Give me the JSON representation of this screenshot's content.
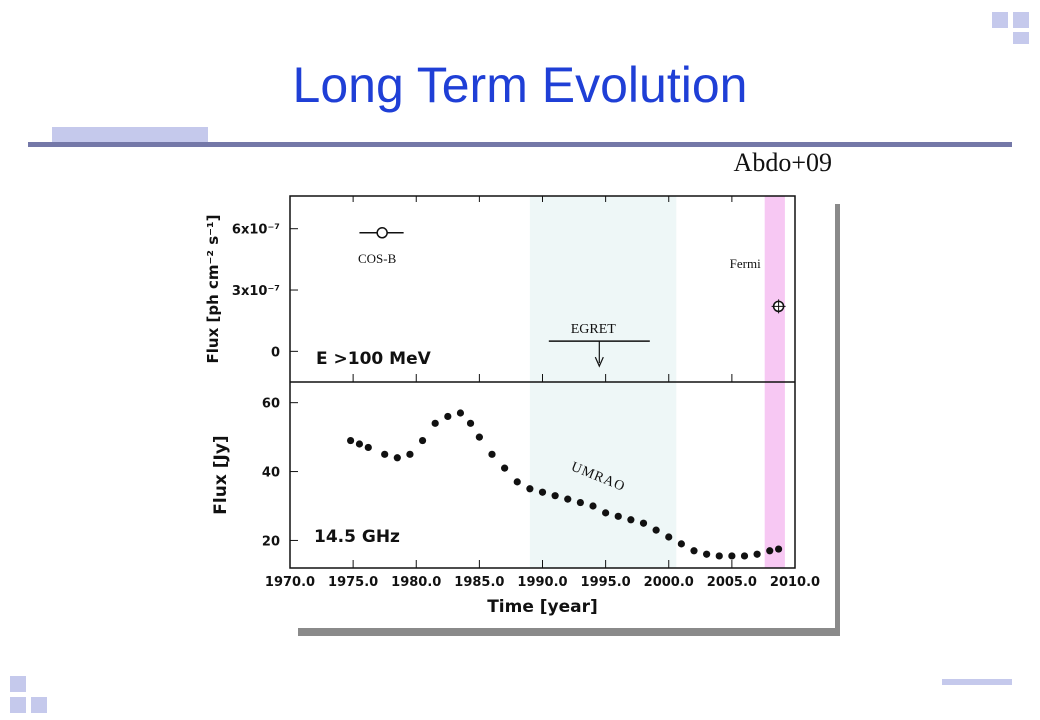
{
  "slide": {
    "title": "Long Term Evolution",
    "citation": "Abdo+09"
  },
  "colors": {
    "title": "#1f3fd6",
    "egret_band": "#eef7f7",
    "fermi_band": "#f7c8f3",
    "deco": "#c5c9ec"
  },
  "chart_data": [
    {
      "type": "scatter",
      "panel": "top",
      "ylabel": "Flux [ph cm⁻² s⁻¹]",
      "annotation": "E >100 MeV",
      "ylim": [
        -1.5e-07,
        7.6e-07
      ],
      "y_ticks": [
        {
          "value": 0,
          "label": "0"
        },
        {
          "value": 3e-07,
          "label": "3x10⁻⁷"
        },
        {
          "value": 6e-07,
          "label": "6x10⁻⁷"
        }
      ],
      "series": [
        {
          "name": "COS-B",
          "points": [
            {
              "x": 1977.3,
              "x_range": [
                1975.5,
                1979.0
              ],
              "y": 5.8e-07
            }
          ]
        },
        {
          "name": "EGRET",
          "upper_limit": {
            "x_range": [
              1990.5,
              1998.5
            ],
            "y": 5e-08
          }
        },
        {
          "name": "Fermi",
          "points": [
            {
              "x": 2008.7,
              "y": 2.2e-07
            }
          ]
        }
      ]
    },
    {
      "type": "scatter",
      "panel": "bottom",
      "ylabel": "Flux [Jy]",
      "xlabel": "Time [year]",
      "annotation": "14.5 GHz",
      "series_label": "UMRAO",
      "xlim": [
        1970,
        2010
      ],
      "ylim": [
        12,
        66
      ],
      "x_ticks": [
        "1970.0",
        "1975.0",
        "1980.0",
        "1985.0",
        "1990.0",
        "1995.0",
        "2000.0",
        "2005.0",
        "2010.0"
      ],
      "y_ticks": [
        20,
        40,
        60
      ],
      "egret_era": [
        1989.0,
        2000.6
      ],
      "fermi_era": [
        2007.6,
        2009.2
      ],
      "series": [
        {
          "name": "UMRAO",
          "x": [
            1974.8,
            1975.5,
            1976.2,
            1977.5,
            1978.5,
            1979.5,
            1980.5,
            1981.5,
            1982.5,
            1983.5,
            1984.3,
            1985.0,
            1986.0,
            1987.0,
            1988.0,
            1989.0,
            1990.0,
            1991.0,
            1992.0,
            1993.0,
            1994.0,
            1995.0,
            1996.0,
            1997.0,
            1998.0,
            1999.0,
            2000.0,
            2001.0,
            2002.0,
            2003.0,
            2004.0,
            2005.0,
            2006.0,
            2007.0,
            2008.0,
            2008.7
          ],
          "y": [
            49,
            48,
            47,
            45,
            44,
            45,
            49,
            54,
            56,
            57,
            54,
            50,
            45,
            41,
            37,
            35,
            34,
            33,
            32,
            31,
            30,
            28,
            27,
            26,
            25,
            23,
            21,
            19,
            17,
            16,
            15.5,
            15.5,
            15.5,
            16,
            17,
            17.5
          ]
        }
      ]
    }
  ]
}
